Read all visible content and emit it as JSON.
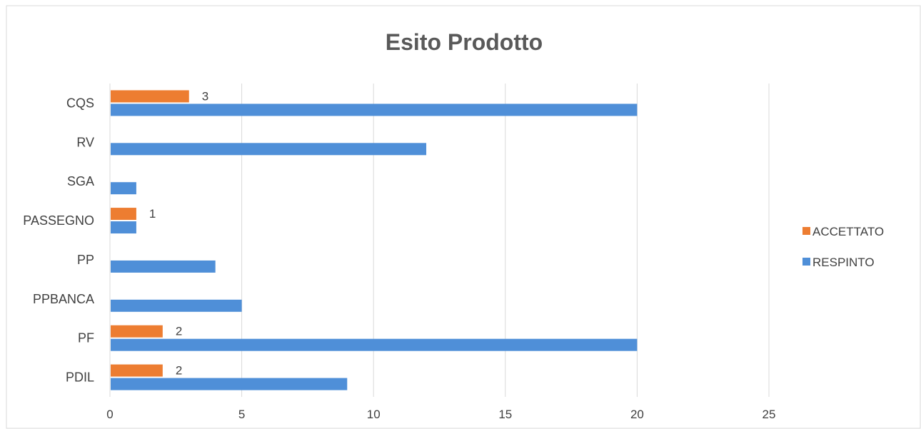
{
  "chart_data": {
    "type": "bar",
    "orientation": "horizontal",
    "title": "Esito Prodotto",
    "xlabel": "",
    "ylabel": "",
    "categories": [
      "PDIL",
      "PF",
      "PPBANCA",
      "PP",
      "PASSEGNO",
      "SGA",
      "RV",
      "CQS"
    ],
    "series": [
      {
        "name": "RESPINTO",
        "color": "#4f8fd8",
        "values": [
          9,
          20,
          5,
          4,
          1,
          1,
          12,
          20
        ],
        "data_labels": [
          null,
          null,
          null,
          null,
          null,
          null,
          null,
          null
        ]
      },
      {
        "name": "ACCETTATO",
        "color": "#ed7d31",
        "values": [
          2,
          2,
          0,
          0,
          1,
          0,
          0,
          3
        ],
        "data_labels": [
          "2",
          "2",
          null,
          null,
          "1",
          null,
          null,
          "3"
        ]
      }
    ],
    "xlim": [
      0,
      25
    ],
    "xticks": [
      0,
      5,
      10,
      15,
      20,
      25
    ],
    "grid": true,
    "legend_position": "right",
    "legend_order": [
      "ACCETTATO",
      "RESPINTO"
    ]
  }
}
